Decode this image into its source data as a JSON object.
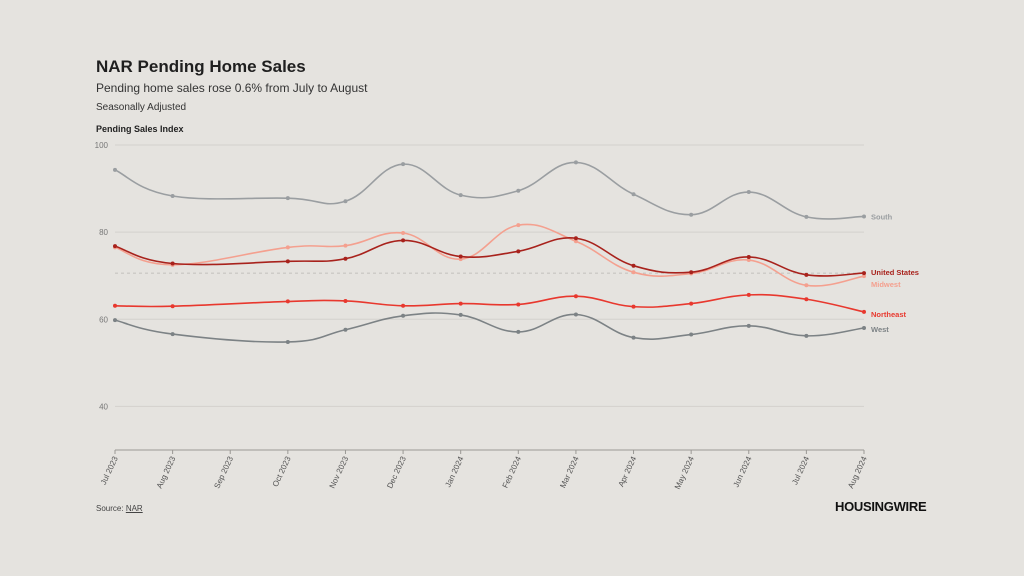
{
  "header": {
    "title": "NAR Pending Home Sales",
    "subtitle": "Pending home sales rose 0.6% from July to August",
    "note": "Seasonally Adjusted"
  },
  "footer": {
    "source_label": "Source:",
    "source_link": "NAR",
    "brand": "HOUSINGWIRE"
  },
  "chart_data": {
    "type": "line",
    "ylabel": "Pending Sales Index",
    "ylim": [
      30,
      100
    ],
    "yticks": [
      40,
      60,
      80,
      100
    ],
    "grid": true,
    "legend": "end-of-line labels",
    "reference_line": 70.6,
    "x": [
      "Jul 2023",
      "Aug 2023",
      "Sep 2023",
      "Oct 2023",
      "Nov 2023",
      "Dec 2023",
      "Jan 2024",
      "Feb 2024",
      "Mar 2024",
      "Apr 2024",
      "May 2024",
      "Jun 2024",
      "Jul 2024",
      "Aug 2024"
    ],
    "series": [
      {
        "name": "South",
        "color": "#9a9ea1",
        "values": [
          94.3,
          88.3,
          null,
          87.8,
          87.1,
          95.6,
          88.5,
          89.5,
          96.0,
          88.7,
          84.0,
          89.2,
          83.5,
          83.6
        ]
      },
      {
        "name": "Midwest",
        "color": "#f4a08f",
        "values": [
          76.5,
          72.5,
          null,
          76.5,
          76.9,
          79.8,
          73.8,
          81.6,
          77.9,
          70.8,
          70.5,
          73.6,
          67.8,
          69.9
        ]
      },
      {
        "name": "United States",
        "color": "#a8221c",
        "values": [
          76.8,
          72.8,
          null,
          73.3,
          73.9,
          78.1,
          74.4,
          75.6,
          78.6,
          72.3,
          70.8,
          74.3,
          70.2,
          70.6
        ]
      },
      {
        "name": "Northeast",
        "color": "#e8382e",
        "values": [
          63.1,
          63.0,
          null,
          64.1,
          64.2,
          63.1,
          63.6,
          63.4,
          65.3,
          62.9,
          63.6,
          65.6,
          64.6,
          61.7
        ]
      },
      {
        "name": "West",
        "color": "#7c8285",
        "values": [
          59.8,
          56.6,
          null,
          54.8,
          57.6,
          60.8,
          61.0,
          57.1,
          61.1,
          55.8,
          56.5,
          58.5,
          56.2,
          58.0
        ]
      }
    ]
  }
}
